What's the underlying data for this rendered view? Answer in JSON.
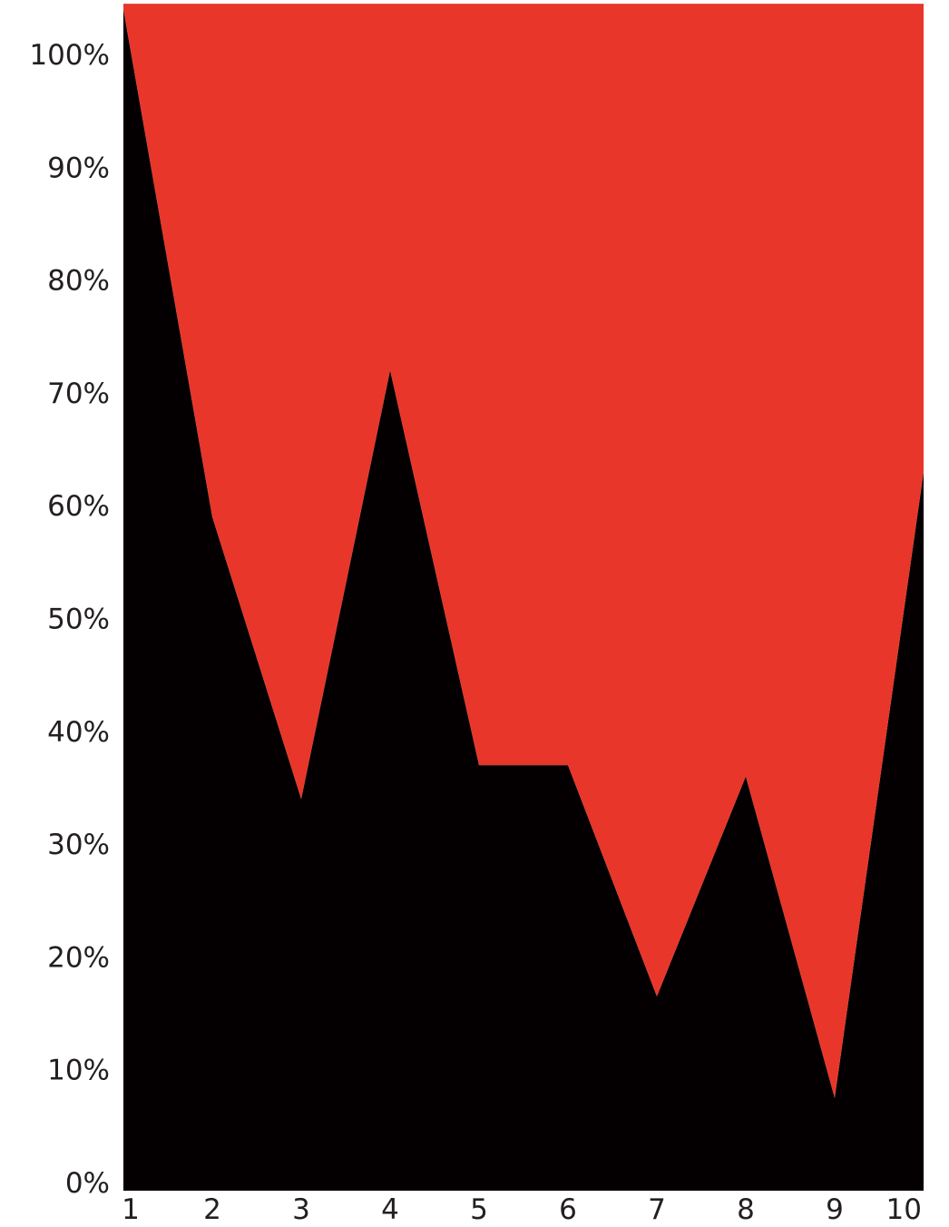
{
  "chart_data": {
    "type": "area",
    "stacked": true,
    "percent": true,
    "x": [
      1,
      2,
      3,
      4,
      5,
      6,
      7,
      8,
      9,
      10
    ],
    "x_tick_labels": [
      "1",
      "2",
      "3",
      "4",
      "5",
      "6",
      "7",
      "8",
      "9",
      "10"
    ],
    "y_tick_labels": [
      "0%",
      "10%",
      "20%",
      "30%",
      "40%",
      "50%",
      "60%",
      "70%",
      "80%",
      "90%",
      "100%"
    ],
    "ylim": [
      0,
      104.5
    ],
    "series": [
      {
        "values": [
          104,
          59,
          34,
          72,
          37,
          37,
          16.5,
          36,
          7.5,
          63
        ],
        "color": "#040001"
      },
      {
        "values": [
          0.5,
          45.5,
          70.5,
          32.5,
          67.5,
          67.5,
          88,
          68.5,
          97,
          41.5
        ],
        "color": "#e8362a"
      }
    ],
    "title": "",
    "xlabel": "",
    "ylabel": "",
    "grid": false,
    "legend": "none"
  }
}
